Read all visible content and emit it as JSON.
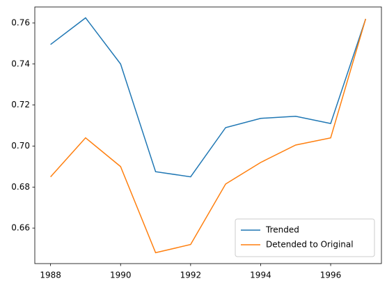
{
  "chart_data": {
    "type": "line",
    "x": [
      1988,
      1989,
      1990,
      1991,
      1992,
      1993,
      1994,
      1995,
      1996,
      1997
    ],
    "series": [
      {
        "name": "Trended",
        "color": "#1f77b4",
        "values": [
          0.7495,
          0.7625,
          0.74,
          0.6875,
          0.685,
          0.709,
          0.7135,
          0.7145,
          0.711,
          0.762
        ]
      },
      {
        "name": "Detended to Original",
        "color": "#ff7f0e",
        "values": [
          0.685,
          0.704,
          0.69,
          0.648,
          0.652,
          0.6815,
          0.692,
          0.7005,
          0.704,
          0.762
        ]
      }
    ],
    "xlim": [
      1987.55,
      1997.45
    ],
    "xticks": [
      1988,
      1990,
      1992,
      1994,
      1996
    ],
    "ylim": [
      0.6427,
      0.7678
    ],
    "yticks": [
      0.66,
      0.68,
      {
        "value": 0.7,
        "label": "0.70"
      },
      0.72,
      0.74,
      0.76
    ],
    "legend": "lower right"
  }
}
